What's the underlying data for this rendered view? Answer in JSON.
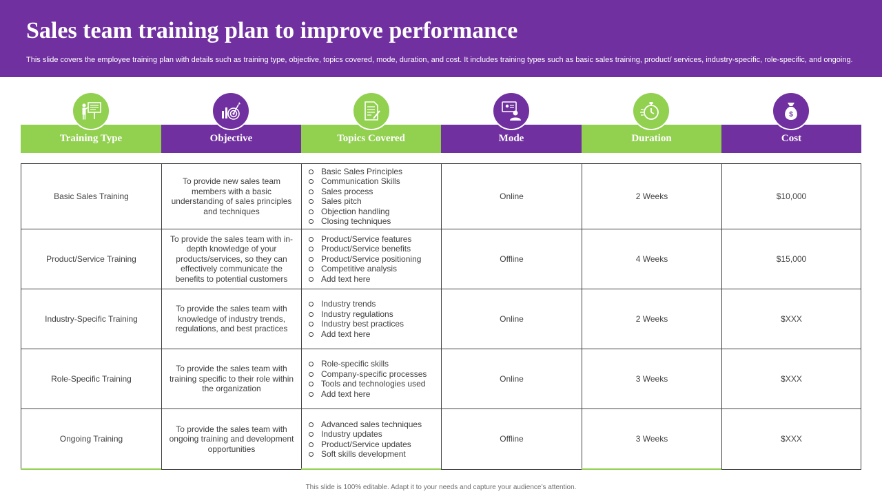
{
  "slide": {
    "title": "Sales team training plan to improve performance",
    "subtitle": "This slide covers the employee training plan with details such as training type, objective, topics covered, mode, duration, and cost. It includes training types such as basic sales training, product/ services, industry-specific, role-specific, and ongoing.",
    "footer": "This slide is 100% editable. Adapt it to your needs and capture your audience’s attention."
  },
  "colors": {
    "purple": "#7030a0",
    "green": "#92d050",
    "text": "#404040"
  },
  "table": {
    "columns": [
      {
        "label": "Training Type",
        "icon": "presentation-icon",
        "color": "green"
      },
      {
        "label": "Objective",
        "icon": "target-icon",
        "color": "purple"
      },
      {
        "label": "Topics Covered",
        "icon": "document-icon",
        "color": "green"
      },
      {
        "label": "Mode",
        "icon": "online-meeting-icon",
        "color": "purple"
      },
      {
        "label": "Duration",
        "icon": "stopwatch-icon",
        "color": "green"
      },
      {
        "label": "Cost",
        "icon": "money-bag-icon",
        "color": "purple"
      }
    ],
    "rows": [
      {
        "training_type": "Basic Sales Training",
        "objective": "To provide new sales team members with a basic understanding of sales principles and techniques",
        "topics": [
          "Basic Sales Principles",
          "Communication Skills",
          "Sales process",
          "Sales pitch",
          "Objection handling",
          "Closing techniques"
        ],
        "mode": "Online",
        "duration": "2 Weeks",
        "cost": "$10,000"
      },
      {
        "training_type": "Product/Service Training",
        "objective": "To provide the sales team with in-depth knowledge of your products/services, so they can effectively communicate the benefits to potential customers",
        "topics": [
          "Product/Service features",
          "Product/Service benefits",
          "Product/Service positioning",
          "Competitive analysis",
          "Add text here"
        ],
        "mode": "Offline",
        "duration": "4 Weeks",
        "cost": "$15,000"
      },
      {
        "training_type": "Industry-Specific Training",
        "objective": "To provide the sales team with knowledge of industry trends, regulations, and best practices",
        "topics": [
          "Industry trends",
          "Industry regulations",
          "Industry best practices",
          "Add text here"
        ],
        "mode": "Online",
        "duration": "2 Weeks",
        "cost": "$XXX"
      },
      {
        "training_type": "Role-Specific Training",
        "objective": "To provide the sales team with training specific to their role within the organization",
        "topics": [
          "Role-specific skills",
          "Company-specific processes",
          "Tools and technologies used",
          "Add text here"
        ],
        "mode": "Online",
        "duration": "3 Weeks",
        "cost": "$XXX"
      },
      {
        "training_type": "Ongoing Training",
        "objective": "To provide the sales team with ongoing training and development opportunities",
        "topics": [
          "Advanced sales techniques",
          "Industry updates",
          "Product/Service updates",
          "Soft skills development"
        ],
        "mode": "Offline",
        "duration": "3 Weeks",
        "cost": "$XXX"
      }
    ]
  }
}
